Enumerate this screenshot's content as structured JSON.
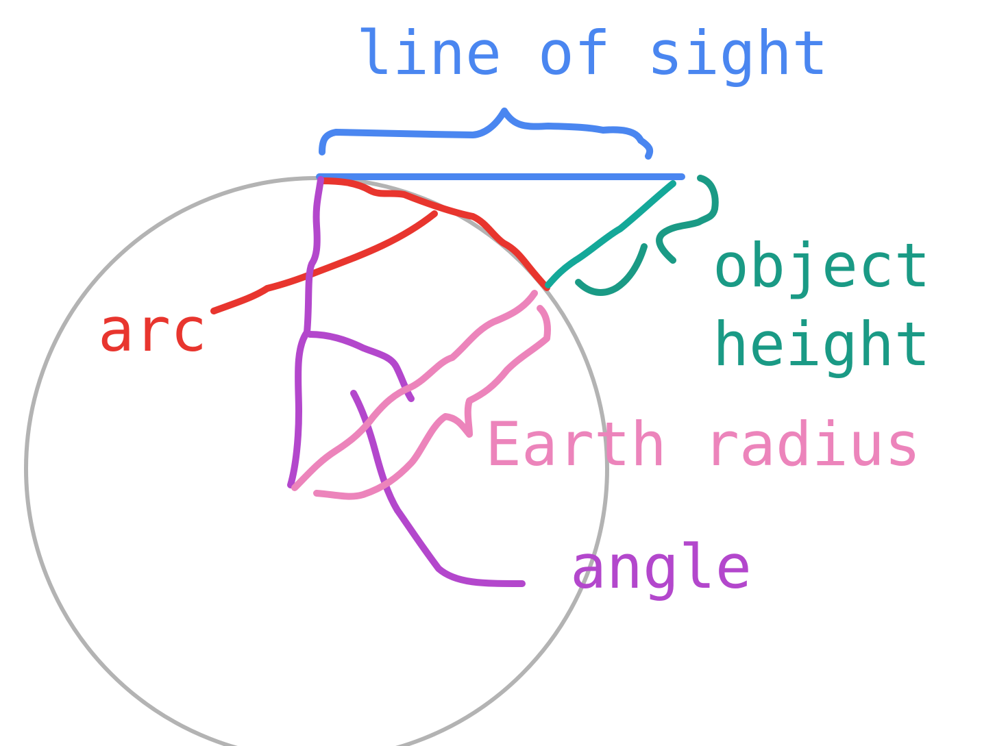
{
  "labels": {
    "line_of_sight": "line of sight",
    "arc": "arc",
    "object_height_line1": "object",
    "object_height_line2": "height",
    "earth_radius": "Earth radius",
    "angle": "angle"
  },
  "colors": {
    "background": "#ffffff",
    "earth_circle": "#b3b3b3",
    "line_of_sight": "#4a86f0",
    "arc": "#e8352e",
    "object_height": "#1a9a85",
    "object_height_stroke": "#14a899",
    "earth_radius": "#ec84bb",
    "angle": "#b347cc"
  }
}
